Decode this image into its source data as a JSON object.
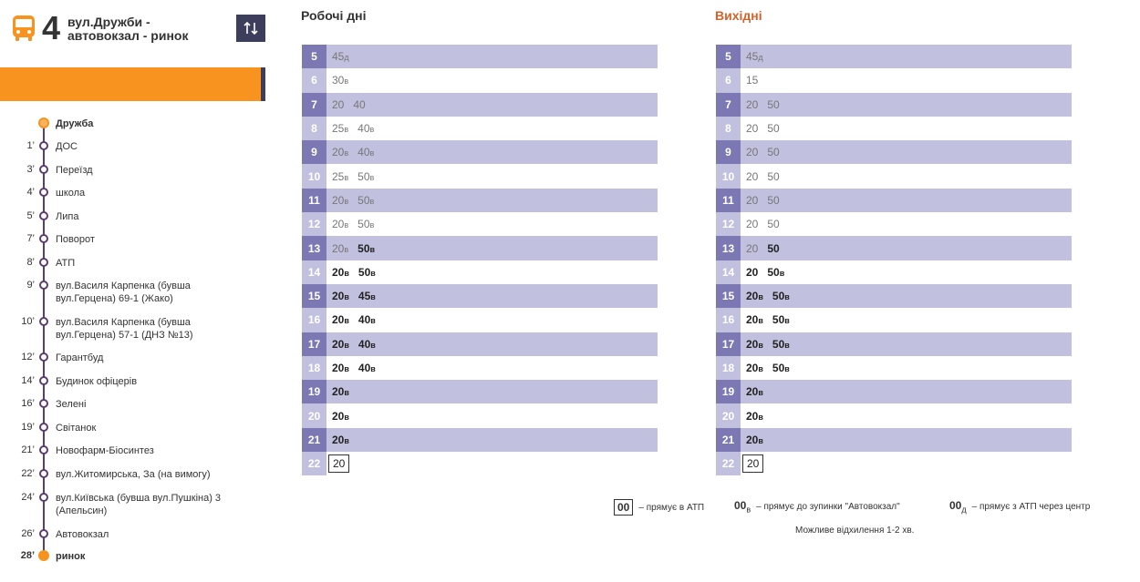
{
  "route": {
    "number": "4",
    "name_line1": "вул.Дружби -",
    "name_line2": "автовокзал - ринок"
  },
  "stops": [
    {
      "min": "",
      "name": "Дружба",
      "type": "start"
    },
    {
      "min": "1’",
      "name": "ДОС"
    },
    {
      "min": "3’",
      "name": "Переїзд"
    },
    {
      "min": "4’",
      "name": "школа"
    },
    {
      "min": "5’",
      "name": "Липа"
    },
    {
      "min": "7’",
      "name": "Поворот"
    },
    {
      "min": "8’",
      "name": "АТП"
    },
    {
      "min": "9’",
      "name": "вул.Василя Карпенка (бувша вул.Герцена) 69-1 (Жако)"
    },
    {
      "min": "10’",
      "name": "вул.Василя Карпенка (бувша вул.Герцена) 57-1 (ДНЗ №13)"
    },
    {
      "min": "12’",
      "name": "Гарантбуд"
    },
    {
      "min": "14’",
      "name": "Будинок офіцерів"
    },
    {
      "min": "16’",
      "name": "Зелені"
    },
    {
      "min": "19’",
      "name": "Світанок"
    },
    {
      "min": "21’",
      "name": "Новофарм-Біосинтез"
    },
    {
      "min": "22’",
      "name": "вул.Житомирська, За (на вимогу)"
    },
    {
      "min": "24’",
      "name": "вул.Київська (бувша вул.Пушкіна) 3 (Апельсин)"
    },
    {
      "min": "26’",
      "name": "Автовокзал"
    },
    {
      "min": "28’",
      "name": "ринок",
      "type": "end"
    }
  ],
  "weekdays": {
    "title": "Робочі дні",
    "color": "#333333",
    "rows": [
      {
        "h": "5",
        "m": [
          {
            "t": "45",
            "s": "д"
          }
        ]
      },
      {
        "h": "6",
        "m": [
          {
            "t": "30",
            "s": "в"
          }
        ]
      },
      {
        "h": "7",
        "m": [
          {
            "t": "20"
          },
          {
            "t": "40"
          }
        ]
      },
      {
        "h": "8",
        "m": [
          {
            "t": "25",
            "s": "в"
          },
          {
            "t": "40",
            "s": "в"
          }
        ]
      },
      {
        "h": "9",
        "m": [
          {
            "t": "20",
            "s": "в"
          },
          {
            "t": "40",
            "s": "в"
          }
        ]
      },
      {
        "h": "10",
        "m": [
          {
            "t": "25",
            "s": "в"
          },
          {
            "t": "50",
            "s": "в"
          }
        ]
      },
      {
        "h": "11",
        "m": [
          {
            "t": "20",
            "s": "в"
          },
          {
            "t": "50",
            "s": "в"
          }
        ]
      },
      {
        "h": "12",
        "m": [
          {
            "t": "20",
            "s": "в"
          },
          {
            "t": "50",
            "s": "в"
          }
        ]
      },
      {
        "h": "13",
        "m": [
          {
            "t": "20",
            "s": "в"
          },
          {
            "t": "50",
            "s": "в",
            "d": true
          }
        ]
      },
      {
        "h": "14",
        "m": [
          {
            "t": "20",
            "s": "в",
            "d": true
          },
          {
            "t": "50",
            "s": "в",
            "d": true
          }
        ]
      },
      {
        "h": "15",
        "m": [
          {
            "t": "20",
            "s": "в",
            "d": true
          },
          {
            "t": "45",
            "s": "в",
            "d": true
          }
        ]
      },
      {
        "h": "16",
        "m": [
          {
            "t": "20",
            "s": "в",
            "d": true
          },
          {
            "t": "40",
            "s": "в",
            "d": true
          }
        ]
      },
      {
        "h": "17",
        "m": [
          {
            "t": "20",
            "s": "в",
            "d": true
          },
          {
            "t": "40",
            "s": "в",
            "d": true
          }
        ]
      },
      {
        "h": "18",
        "m": [
          {
            "t": "20",
            "s": "в",
            "d": true
          },
          {
            "t": "40",
            "s": "в",
            "d": true
          }
        ]
      },
      {
        "h": "19",
        "m": [
          {
            "t": "20",
            "s": "в",
            "d": true
          }
        ]
      },
      {
        "h": "20",
        "m": [
          {
            "t": "20",
            "s": "в",
            "d": true
          }
        ]
      },
      {
        "h": "21",
        "m": [
          {
            "t": "20",
            "s": "в",
            "d": true
          }
        ]
      },
      {
        "h": "22",
        "m": [
          {
            "t": "20",
            "b": true
          }
        ]
      }
    ]
  },
  "weekend": {
    "title": "Вихідні",
    "color": "#d4622a",
    "rows": [
      {
        "h": "5",
        "m": [
          {
            "t": "45",
            "s": "д"
          }
        ]
      },
      {
        "h": "6",
        "m": [
          {
            "t": "15"
          }
        ]
      },
      {
        "h": "7",
        "m": [
          {
            "t": "20"
          },
          {
            "t": "50"
          }
        ]
      },
      {
        "h": "8",
        "m": [
          {
            "t": "20"
          },
          {
            "t": "50"
          }
        ]
      },
      {
        "h": "9",
        "m": [
          {
            "t": "20"
          },
          {
            "t": "50"
          }
        ]
      },
      {
        "h": "10",
        "m": [
          {
            "t": "20"
          },
          {
            "t": "50"
          }
        ]
      },
      {
        "h": "11",
        "m": [
          {
            "t": "20"
          },
          {
            "t": "50"
          }
        ]
      },
      {
        "h": "12",
        "m": [
          {
            "t": "20"
          },
          {
            "t": "50"
          }
        ]
      },
      {
        "h": "13",
        "m": [
          {
            "t": "20"
          },
          {
            "t": "50",
            "d": true
          }
        ]
      },
      {
        "h": "14",
        "m": [
          {
            "t": "20",
            "d": true
          },
          {
            "t": "50",
            "s": "в",
            "d": true
          }
        ]
      },
      {
        "h": "15",
        "m": [
          {
            "t": "20",
            "s": "в",
            "d": true
          },
          {
            "t": "50",
            "s": "в",
            "d": true
          }
        ]
      },
      {
        "h": "16",
        "m": [
          {
            "t": "20",
            "s": "в",
            "d": true
          },
          {
            "t": "50",
            "s": "в",
            "d": true
          }
        ]
      },
      {
        "h": "17",
        "m": [
          {
            "t": "20",
            "s": "в",
            "d": true
          },
          {
            "t": "50",
            "s": "в",
            "d": true
          }
        ]
      },
      {
        "h": "18",
        "m": [
          {
            "t": "20",
            "s": "в",
            "d": true
          },
          {
            "t": "50",
            "s": "в",
            "d": true
          }
        ]
      },
      {
        "h": "19",
        "m": [
          {
            "t": "20",
            "s": "в",
            "d": true
          }
        ]
      },
      {
        "h": "20",
        "m": [
          {
            "t": "20",
            "s": "в",
            "d": true
          }
        ]
      },
      {
        "h": "21",
        "m": [
          {
            "t": "20",
            "s": "в",
            "d": true
          }
        ]
      },
      {
        "h": "22",
        "m": [
          {
            "t": "20",
            "b": true
          }
        ]
      }
    ]
  },
  "legend": {
    "item1_code": "00",
    "item1_text": "– прямує в АТП",
    "item2_code": "00",
    "item2_sub": "в",
    "item2_text": "– прямує до зупинки \"Автовокзал\"",
    "item3_code": "00",
    "item3_sub": "д",
    "item3_text": "– прямує з АТП через центр",
    "note": "Можливе відхилення 1-2 хв."
  },
  "icons": {
    "bus": "bus-icon",
    "swap": "swap-arrows-icon"
  },
  "colors": {
    "accent": "#f7931e",
    "dark": "#3d3d5c",
    "row_dark": "#7b78b4",
    "row_light": "#c1c0de"
  }
}
